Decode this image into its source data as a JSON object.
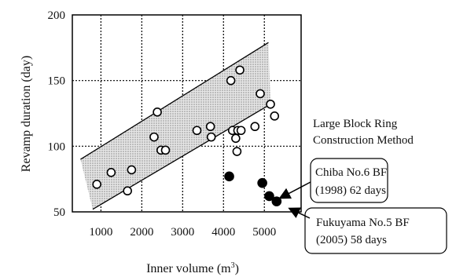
{
  "chart_data": {
    "type": "scatter",
    "xlabel": "Inner volume (m",
    "xlabel_sup": "3",
    "xlabel_close": ")",
    "ylabel": "Revamp duration (day)",
    "xlim": [
      300,
      5900
    ],
    "ylim": [
      50,
      200
    ],
    "x_ticks": [
      1000,
      2000,
      3000,
      4000,
      5000
    ],
    "x_tick_labels": [
      "1000",
      "2000",
      "3000",
      "4000",
      "5000"
    ],
    "y_ticks": [
      50,
      100,
      150,
      200
    ],
    "y_tick_labels": [
      "50",
      "100",
      "150",
      "200"
    ],
    "grid": true,
    "series": [
      {
        "marker": "open-circle",
        "points": [
          {
            "x": 900,
            "y": 71
          },
          {
            "x": 1250,
            "y": 80
          },
          {
            "x": 1650,
            "y": 66
          },
          {
            "x": 1750,
            "y": 82
          },
          {
            "x": 2300,
            "y": 107
          },
          {
            "x": 2380,
            "y": 126
          },
          {
            "x": 2470,
            "y": 97
          },
          {
            "x": 2580,
            "y": 97
          },
          {
            "x": 3350,
            "y": 112
          },
          {
            "x": 3680,
            "y": 115
          },
          {
            "x": 3700,
            "y": 107
          },
          {
            "x": 4180,
            "y": 150
          },
          {
            "x": 4220,
            "y": 112
          },
          {
            "x": 4300,
            "y": 106
          },
          {
            "x": 4330,
            "y": 96
          },
          {
            "x": 4350,
            "y": 112
          },
          {
            "x": 4400,
            "y": 158
          },
          {
            "x": 4430,
            "y": 112
          },
          {
            "x": 4770,
            "y": 115
          },
          {
            "x": 4900,
            "y": 140
          },
          {
            "x": 5150,
            "y": 132
          },
          {
            "x": 5250,
            "y": 123
          }
        ]
      },
      {
        "marker": "filled-circle",
        "points": [
          {
            "x": 4140,
            "y": 77
          },
          {
            "x": 4950,
            "y": 72
          },
          {
            "x": 5120,
            "y": 62
          },
          {
            "x": 5300,
            "y": 58
          }
        ]
      }
    ],
    "band": {
      "upper_line": [
        {
          "x": 500,
          "y": 90
        },
        {
          "x": 5100,
          "y": 179
        }
      ],
      "lower_line": [
        {
          "x": 800,
          "y": 52
        },
        {
          "x": 5150,
          "y": 132
        }
      ]
    },
    "annotations": [
      {
        "lines": [
          "Large Block Ring",
          "Construction Method"
        ]
      },
      {
        "lines": [
          "Chiba No.6 BF",
          "(1998) 62 days"
        ],
        "target": {
          "x": 5120,
          "y": 62
        }
      },
      {
        "lines": [
          "Fukuyama No.5 BF",
          "(2005) 58 days"
        ],
        "target": {
          "x": 5300,
          "y": 58
        }
      }
    ]
  }
}
